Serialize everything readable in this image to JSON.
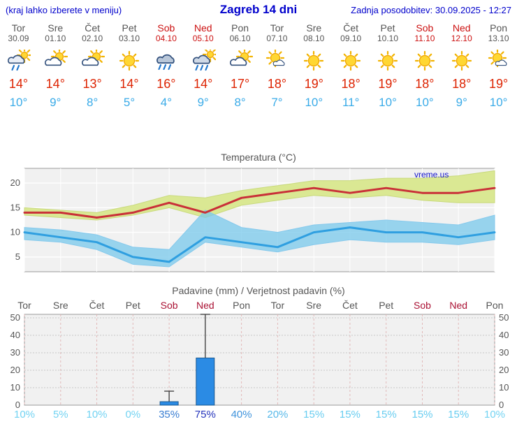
{
  "header": {
    "left_note": "(kraj lahko izberete v meniju)",
    "title": "Zagreb 14 dni",
    "updated": "Zadnja posodobitev: 30.09.2025 - 12:27"
  },
  "watermark": "vreme.us",
  "days": [
    {
      "name": "Tor",
      "date": "30.09",
      "icon": "showers",
      "tmax": "14°",
      "tmin": "10°",
      "weekend": false
    },
    {
      "name": "Sre",
      "date": "01.10",
      "icon": "partly",
      "tmax": "14°",
      "tmin": "9°",
      "weekend": false
    },
    {
      "name": "Čet",
      "date": "02.10",
      "icon": "partly",
      "tmax": "13°",
      "tmin": "8°",
      "weekend": false
    },
    {
      "name": "Pet",
      "date": "03.10",
      "icon": "sunny",
      "tmax": "14°",
      "tmin": "5°",
      "weekend": false
    },
    {
      "name": "Sob",
      "date": "04.10",
      "icon": "rain",
      "tmax": "16°",
      "tmin": "4°",
      "weekend": true
    },
    {
      "name": "Ned",
      "date": "05.10",
      "icon": "showers-sun",
      "tmax": "14°",
      "tmin": "9°",
      "weekend": true
    },
    {
      "name": "Pon",
      "date": "06.10",
      "icon": "partly",
      "tmax": "17°",
      "tmin": "8°",
      "weekend": false
    },
    {
      "name": "Tor",
      "date": "07.10",
      "icon": "mostly-sunny",
      "tmax": "18°",
      "tmin": "7°",
      "weekend": false
    },
    {
      "name": "Sre",
      "date": "08.10",
      "icon": "sunny",
      "tmax": "19°",
      "tmin": "10°",
      "weekend": false
    },
    {
      "name": "Čet",
      "date": "09.10",
      "icon": "sunny",
      "tmax": "18°",
      "tmin": "11°",
      "weekend": false
    },
    {
      "name": "Pet",
      "date": "10.10",
      "icon": "sunny",
      "tmax": "19°",
      "tmin": "10°",
      "weekend": false
    },
    {
      "name": "Sob",
      "date": "11.10",
      "icon": "sunny",
      "tmax": "18°",
      "tmin": "10°",
      "weekend": true
    },
    {
      "name": "Ned",
      "date": "12.10",
      "icon": "sunny",
      "tmax": "18°",
      "tmin": "9°",
      "weekend": true
    },
    {
      "name": "Pon",
      "date": "13.10",
      "icon": "mostly-sunny",
      "tmax": "19°",
      "tmin": "10°",
      "weekend": false
    }
  ],
  "chart_data": [
    {
      "type": "line",
      "title": "Temperatura (°C)",
      "x_labels": [
        "Tor",
        "Sre",
        "Čet",
        "Pet",
        "Sob",
        "Ned",
        "Pon",
        "Tor",
        "Sre",
        "Čet",
        "Pet",
        "Sob",
        "Ned",
        "Pon"
      ],
      "ylim": [
        2,
        23
      ],
      "yticks": [
        5,
        10,
        15,
        20
      ],
      "grid": true,
      "series": [
        {
          "name": "max",
          "color": "#c93038",
          "values": [
            14,
            14,
            13,
            14,
            16,
            14,
            17,
            18,
            19,
            18,
            19,
            18,
            18,
            19
          ]
        },
        {
          "name": "min",
          "color": "#2f9fe0",
          "values": [
            10,
            9,
            8,
            5,
            4,
            9,
            8,
            7,
            10,
            11,
            10,
            10,
            9,
            10
          ]
        }
      ],
      "bands": [
        {
          "name": "max-range",
          "color": "rgba(216,231,141,0.95)",
          "edge": "#c9da7d",
          "upper": [
            15,
            14.5,
            14,
            15.5,
            17.5,
            17,
            18.5,
            19.5,
            20.5,
            20.5,
            21,
            21,
            21.5,
            22.5
          ],
          "lower": [
            13.5,
            13,
            12.5,
            13.5,
            15,
            13,
            15.5,
            16.5,
            17.5,
            17,
            17.5,
            16.5,
            16,
            16
          ]
        },
        {
          "name": "min-range",
          "color": "rgba(120,200,235,0.75)",
          "edge": "#86c9ec",
          "upper": [
            11,
            10.5,
            9.5,
            7,
            6.5,
            14.5,
            11,
            10,
            11.5,
            12,
            12.5,
            12,
            11.5,
            13.5
          ],
          "lower": [
            8.5,
            8,
            6.5,
            3.5,
            3,
            8,
            7,
            6,
            7.5,
            8.5,
            8,
            8,
            7.5,
            8.5
          ]
        }
      ]
    },
    {
      "type": "bar",
      "title": "Padavine (mm) / Verjetnost padavin (%)",
      "categories": [
        "Tor",
        "Sre",
        "Čet",
        "Pet",
        "Sob",
        "Ned",
        "Pon",
        "Tor",
        "Sre",
        "Čet",
        "Pet",
        "Sob",
        "Ned",
        "Pon"
      ],
      "weekend": [
        false,
        false,
        false,
        false,
        true,
        true,
        false,
        false,
        false,
        false,
        false,
        true,
        true,
        false
      ],
      "values": [
        0,
        0,
        0,
        0,
        2,
        27,
        0,
        0,
        0,
        0,
        0,
        0,
        0,
        0
      ],
      "whiskers": [
        0,
        0,
        0,
        0,
        8,
        52,
        0,
        0,
        0,
        0,
        0,
        0,
        0,
        0
      ],
      "ylim": [
        0,
        52
      ],
      "yticks": [
        0,
        10,
        20,
        30,
        40,
        50
      ],
      "bar_color": "#2b8be4",
      "probabilities": [
        {
          "label": "10%",
          "color": "#73d3f2"
        },
        {
          "label": "5%",
          "color": "#73d3f2"
        },
        {
          "label": "10%",
          "color": "#73d3f2"
        },
        {
          "label": "0%",
          "color": "#73d3f2"
        },
        {
          "label": "35%",
          "color": "#3a7ed2"
        },
        {
          "label": "75%",
          "color": "#2433bb"
        },
        {
          "label": "40%",
          "color": "#3f93dc"
        },
        {
          "label": "20%",
          "color": "#58b9e9"
        },
        {
          "label": "15%",
          "color": "#68cdf0"
        },
        {
          "label": "15%",
          "color": "#68cdf0"
        },
        {
          "label": "15%",
          "color": "#68cdf0"
        },
        {
          "label": "15%",
          "color": "#68cdf0"
        },
        {
          "label": "15%",
          "color": "#68cdf0"
        },
        {
          "label": "10%",
          "color": "#73d3f2"
        }
      ]
    }
  ]
}
